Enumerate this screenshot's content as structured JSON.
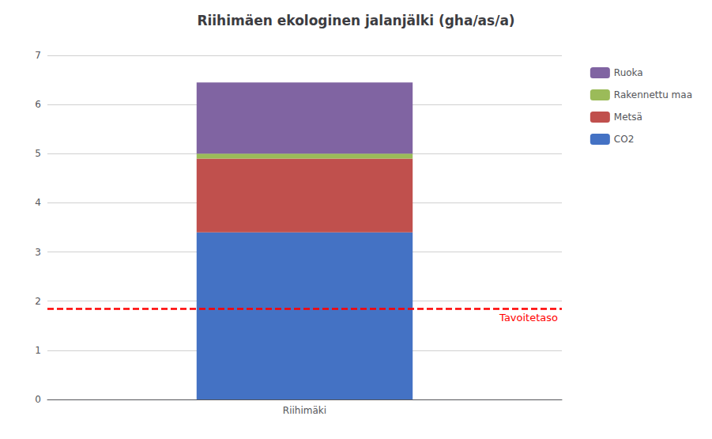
{
  "chart_data": {
    "type": "bar",
    "title": "Riihimäen ekologinen jalanjälki (gha/as/a)",
    "categories": [
      "Riihimäki"
    ],
    "stacked": true,
    "series": [
      {
        "name": "CO2",
        "color": "#4472C4",
        "values": [
          3.4
        ]
      },
      {
        "name": "Metsä",
        "color": "#C0504D",
        "values": [
          1.5
        ]
      },
      {
        "name": "Rakennettu maa",
        "color": "#9BBB59",
        "values": [
          0.1
        ]
      },
      {
        "name": "Ruoka",
        "color": "#8064A2",
        "values": [
          1.45
        ]
      }
    ],
    "hlines": [
      {
        "y": 1.85,
        "label": "Tavoitetaso",
        "color": "red",
        "line_style": "dashed"
      }
    ],
    "ylim": [
      0,
      7
    ],
    "yticks": [
      0,
      1,
      2,
      3,
      4,
      5,
      6,
      7
    ],
    "grid": true,
    "legend": "right"
  }
}
